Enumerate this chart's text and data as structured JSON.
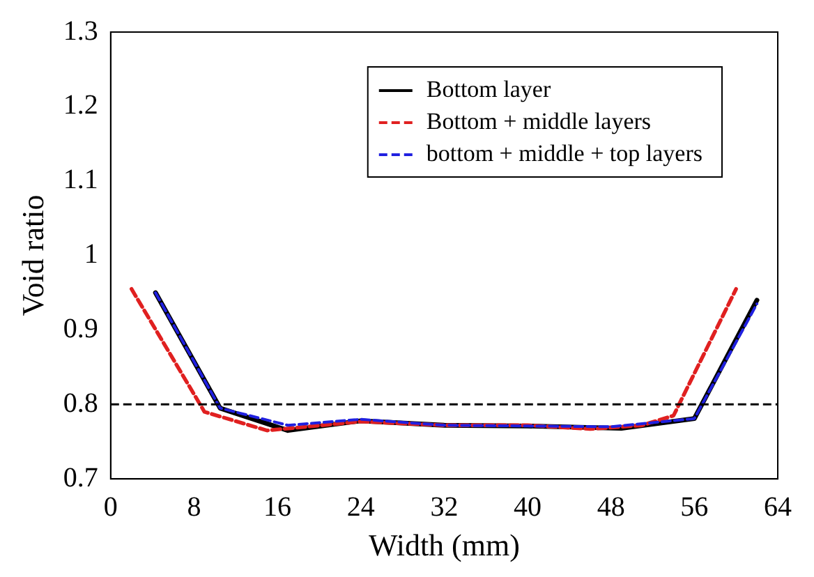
{
  "chart_data": {
    "type": "line",
    "xlabel": "Width (mm)",
    "ylabel": "Void ratio",
    "xlim": [
      0,
      64
    ],
    "xticks": [
      0,
      8,
      16,
      24,
      32,
      40,
      48,
      56,
      64
    ],
    "ylim": [
      0.7,
      1.3
    ],
    "yticks": [
      0.7,
      0.8,
      0.9,
      1,
      1.1,
      1.2,
      1.3
    ],
    "grid": false,
    "legend": "top right",
    "marker": "none",
    "ref_lines": [
      {
        "axis": "y",
        "value": 0.8,
        "color": "#000000",
        "line_style": "dashed"
      }
    ],
    "series": [
      {
        "name": "Bottom layer",
        "color": "#000000",
        "line_style": "solid",
        "x": [
          4.3,
          10.5,
          17,
          24,
          32,
          40,
          49,
          56,
          62
        ],
        "values": [
          0.95,
          0.795,
          0.765,
          0.778,
          0.772,
          0.771,
          0.768,
          0.781,
          0.94
        ]
      },
      {
        "name": "Bottom + middle layers",
        "color": "#e02020",
        "line_style": "dashed",
        "x": [
          2,
          9,
          15,
          24,
          32,
          40,
          46,
          51,
          54,
          60
        ],
        "values": [
          0.955,
          0.79,
          0.765,
          0.777,
          0.772,
          0.772,
          0.767,
          0.772,
          0.785,
          0.955
        ]
      },
      {
        "name": "bottom + middle + top layers",
        "color": "#2020e0",
        "line_style": "dashed",
        "x": [
          4.3,
          10.5,
          17,
          24,
          32,
          40,
          48,
          56,
          62
        ],
        "values": [
          0.95,
          0.795,
          0.772,
          0.78,
          0.772,
          0.771,
          0.77,
          0.781,
          0.935
        ]
      }
    ]
  }
}
